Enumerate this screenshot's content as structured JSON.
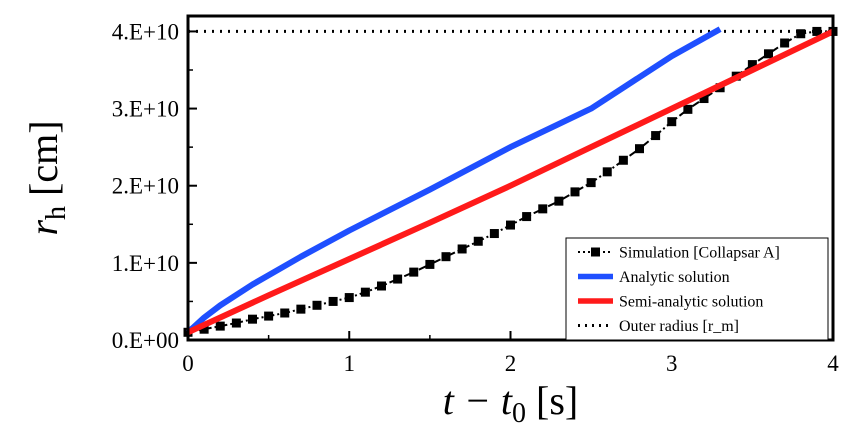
{
  "chart_data": {
    "type": "line",
    "title": "",
    "xlabel": {
      "main": "t − t",
      "sub": "0",
      "unit": " [s]"
    },
    "ylabel": {
      "main": "r",
      "sub": "h",
      "unit": " [cm]"
    },
    "xlim": [
      0,
      4
    ],
    "ylim": [
      0,
      42000000000.0
    ],
    "xticks": [
      0,
      1,
      2,
      3,
      4
    ],
    "xtick_labels": [
      "0",
      "1",
      "2",
      "3",
      "4"
    ],
    "yticks": [
      0,
      10000000000.0,
      20000000000.0,
      30000000000.0,
      40000000000.0
    ],
    "ytick_labels": [
      "0.E+00",
      "1.E+10",
      "2.E+10",
      "3.E+10",
      "4.E+10"
    ],
    "grid": false,
    "legend_position": "bottom-right",
    "series": [
      {
        "name": "Simulation [Collapsar A]",
        "color": "#000000",
        "style": "dash-dot-square",
        "x": [
          0.0,
          0.1,
          0.2,
          0.3,
          0.4,
          0.5,
          0.6,
          0.7,
          0.8,
          0.9,
          1.0,
          1.1,
          1.2,
          1.3,
          1.4,
          1.5,
          1.6,
          1.7,
          1.8,
          1.9,
          2.0,
          2.1,
          2.2,
          2.3,
          2.4,
          2.5,
          2.6,
          2.7,
          2.8,
          2.9,
          3.0,
          3.1,
          3.2,
          3.3,
          3.4,
          3.5,
          3.6,
          3.7,
          3.8,
          3.9,
          4.0
        ],
        "y": [
          1000000000.0,
          1400000000.0,
          1800000000.0,
          2200000000.0,
          2700000000.0,
          3100000000.0,
          3500000000.0,
          4000000000.0,
          4500000000.0,
          5000000000.0,
          5500000000.0,
          6200000000.0,
          7000000000.0,
          7900000000.0,
          8800000000.0,
          9800000000.0,
          10800000000.0,
          11800000000.0,
          12800000000.0,
          13800000000.0,
          14900000000.0,
          16000000000.0,
          17000000000.0,
          18000000000.0,
          19200000000.0,
          20400000000.0,
          21800000000.0,
          23300000000.0,
          24800000000.0,
          26500000000.0,
          28300000000.0,
          29900000000.0,
          31300000000.0,
          32700000000.0,
          34200000000.0,
          35700000000.0,
          37100000000.0,
          38500000000.0,
          39700000000.0,
          40000000000.0,
          40000000000.0
        ]
      },
      {
        "name": "Analytic solution",
        "color": "#1f4fff",
        "style": "solid",
        "x": [
          0.0,
          0.1,
          0.2,
          0.4,
          0.7,
          1.0,
          1.5,
          2.0,
          2.5,
          3.0,
          3.3
        ],
        "y": [
          1000000000.0,
          2900000000.0,
          4500000000.0,
          7200000000.0,
          10800000000.0,
          14200000000.0,
          19500000000.0,
          25000000000.0,
          30000000000.0,
          36800000000.0,
          40300000000.0
        ]
      },
      {
        "name": "Semi-analytic solution",
        "color": "#ff1a1a",
        "style": "solid",
        "x": [
          0.0,
          0.5,
          1.0,
          1.5,
          2.0,
          2.5,
          3.0,
          3.5,
          4.0
        ],
        "y": [
          1000000000.0,
          5800000000.0,
          10500000000.0,
          15200000000.0,
          20000000000.0,
          25000000000.0,
          30000000000.0,
          35000000000.0,
          40000000000.0
        ]
      },
      {
        "name": "Outer radius [r_m]",
        "color": "#000000",
        "style": "dotted",
        "x": [
          0.0,
          4.0
        ],
        "y": [
          40000000000.0,
          40000000000.0
        ]
      }
    ]
  }
}
